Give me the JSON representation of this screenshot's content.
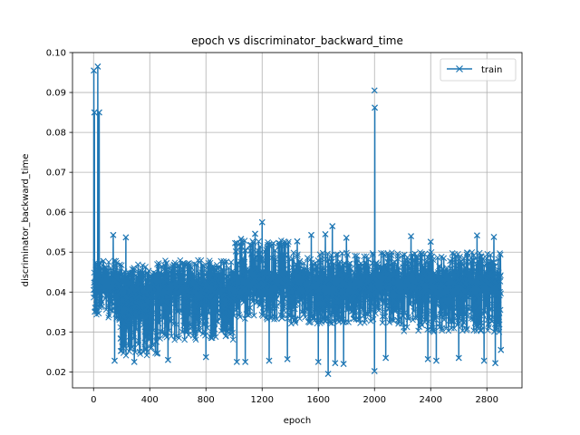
{
  "chart_data": {
    "type": "line",
    "title": "epoch vs discriminator_backward_time",
    "xlabel": "epoch",
    "ylabel": "discriminator_backward_time",
    "xlim": [
      -150,
      3050
    ],
    "ylim": [
      0.016,
      0.1
    ],
    "xticks": [
      0,
      400,
      800,
      1200,
      1600,
      2000,
      2400,
      2800
    ],
    "yticks": [
      0.02,
      0.03,
      0.04,
      0.05,
      0.06,
      0.07,
      0.08,
      0.09,
      0.1
    ],
    "ytick_labels": [
      "0.02",
      "0.03",
      "0.04",
      "0.05",
      "0.06",
      "0.07",
      "0.08",
      "0.09",
      "0.10"
    ],
    "grid": true,
    "legend_position": "top-right",
    "marker": "x",
    "color": "#1f77b4",
    "series": [
      {
        "name": "train",
        "x_start": 0,
        "x_end": 2900,
        "n_points": 2901,
        "baseline": 0.042,
        "spread_bands": [
          {
            "x": [
              0,
              190
            ],
            "low": 0.033,
            "high": 0.048
          },
          {
            "x": [
              190,
              460
            ],
            "low": 0.024,
            "high": 0.047
          },
          {
            "x": [
              460,
              1000
            ],
            "low": 0.028,
            "high": 0.048
          },
          {
            "x": [
              1000,
              1400
            ],
            "low": 0.033,
            "high": 0.053
          },
          {
            "x": [
              1400,
              2200
            ],
            "low": 0.032,
            "high": 0.05
          },
          {
            "x": [
              2200,
              2900
            ],
            "low": 0.03,
            "high": 0.05
          }
        ],
        "peaks": [
          {
            "x": 2,
            "y": 0.0955
          },
          {
            "x": 6,
            "y": 0.085
          },
          {
            "x": 30,
            "y": 0.0965
          },
          {
            "x": 40,
            "y": 0.085
          },
          {
            "x": 2000,
            "y": 0.0905
          },
          {
            "x": 2002,
            "y": 0.0862
          },
          {
            "x": 1200,
            "y": 0.0575
          },
          {
            "x": 1700,
            "y": 0.0565
          },
          {
            "x": 1550,
            "y": 0.0543
          },
          {
            "x": 1450,
            "y": 0.0527
          },
          {
            "x": 2730,
            "y": 0.0542
          },
          {
            "x": 2260,
            "y": 0.054
          },
          {
            "x": 140,
            "y": 0.0543
          },
          {
            "x": 230,
            "y": 0.0537
          },
          {
            "x": 1050,
            "y": 0.0533
          },
          {
            "x": 1150,
            "y": 0.0546
          },
          {
            "x": 1650,
            "y": 0.0545
          },
          {
            "x": 1800,
            "y": 0.0536
          },
          {
            "x": 2400,
            "y": 0.0526
          },
          {
            "x": 2850,
            "y": 0.0538
          }
        ],
        "dips": [
          {
            "x": 150,
            "y": 0.0228
          },
          {
            "x": 290,
            "y": 0.0225
          },
          {
            "x": 530,
            "y": 0.023
          },
          {
            "x": 800,
            "y": 0.0237
          },
          {
            "x": 1020,
            "y": 0.0225
          },
          {
            "x": 1080,
            "y": 0.0225
          },
          {
            "x": 1250,
            "y": 0.0228
          },
          {
            "x": 1380,
            "y": 0.0232
          },
          {
            "x": 1600,
            "y": 0.0225
          },
          {
            "x": 1670,
            "y": 0.0195
          },
          {
            "x": 1720,
            "y": 0.0222
          },
          {
            "x": 1780,
            "y": 0.022
          },
          {
            "x": 2000,
            "y": 0.0202
          },
          {
            "x": 2080,
            "y": 0.0235
          },
          {
            "x": 2380,
            "y": 0.0232
          },
          {
            "x": 2440,
            "y": 0.0228
          },
          {
            "x": 2600,
            "y": 0.0235
          },
          {
            "x": 2780,
            "y": 0.0228
          },
          {
            "x": 2860,
            "y": 0.0222
          },
          {
            "x": 2900,
            "y": 0.0255
          }
        ]
      }
    ]
  }
}
